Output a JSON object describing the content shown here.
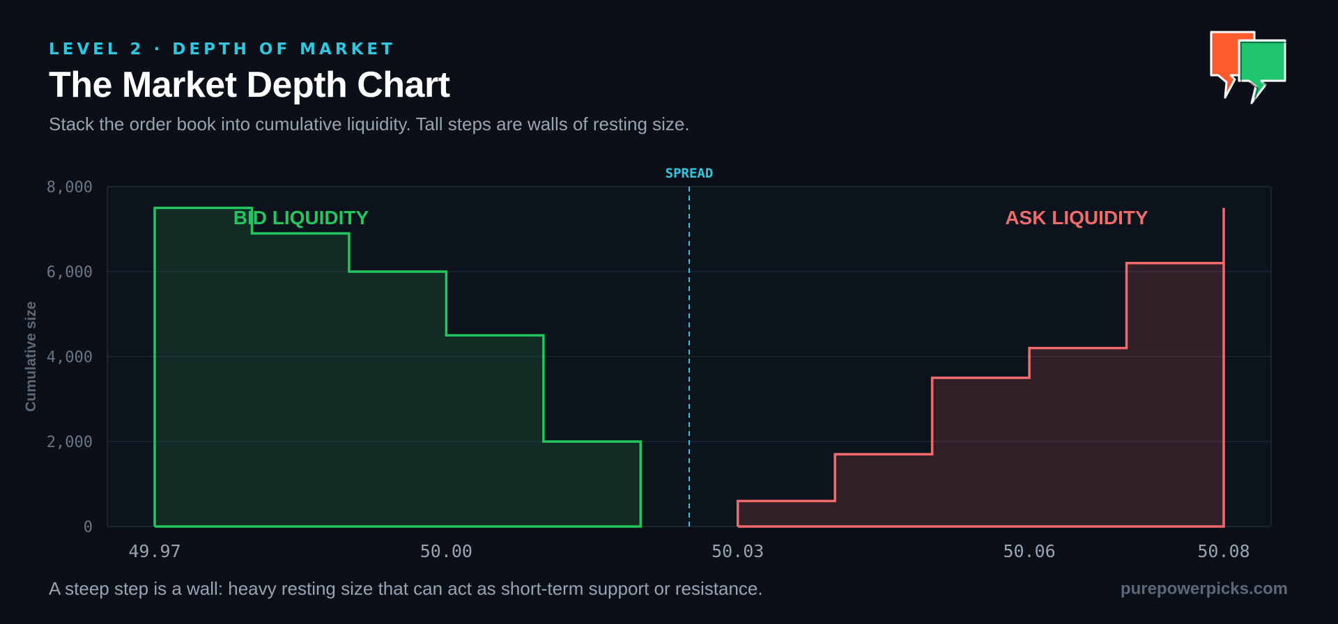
{
  "header": {
    "eyebrow": "LEVEL 2 · DEPTH OF MARKET",
    "title": "The Market Depth Chart",
    "subtitle": "Stack the order book into cumulative liquidity. Tall steps are walls of resting size."
  },
  "footer": {
    "note": "A steep step is a wall: heavy resting size that can act as short-term support or resistance.",
    "brand": "purepowerpicks.com"
  },
  "logo": {
    "icon": "speech-bubbles-lightning-icon",
    "colors": [
      "#ff5a2c",
      "#1fc46f"
    ]
  },
  "colors": {
    "bid": "#22c55e",
    "ask": "#f26b6b",
    "spread": "#2fc6df",
    "background": "#0b0f17"
  },
  "chart_data": {
    "type": "area",
    "subtype": "step",
    "ylabel": "Cumulative size",
    "xlabel": "",
    "xlim": [
      49.965,
      50.085
    ],
    "ylim": [
      0,
      8000
    ],
    "x_ticks": [
      {
        "value": 49.97,
        "label": "49.97"
      },
      {
        "value": 50.0,
        "label": "50.00"
      },
      {
        "value": 50.03,
        "label": "50.03"
      },
      {
        "value": 50.06,
        "label": "50.06"
      },
      {
        "value": 50.08,
        "label": "50.08"
      }
    ],
    "y_ticks": [
      {
        "value": 0,
        "label": "0"
      },
      {
        "value": 2000,
        "label": "2,000"
      },
      {
        "value": 4000,
        "label": "4,000"
      },
      {
        "value": 6000,
        "label": "6,000"
      },
      {
        "value": 8000,
        "label": "8,000"
      }
    ],
    "grid": true,
    "spread": {
      "label": "SPREAD",
      "x": 50.025
    },
    "series": [
      {
        "name": "BID LIQUIDITY",
        "side": "bid",
        "steps": [
          {
            "x0": 49.97,
            "x1": 49.98,
            "y": 7500
          },
          {
            "x0": 49.98,
            "x1": 49.99,
            "y": 6900
          },
          {
            "x0": 49.99,
            "x1": 50.0,
            "y": 6000
          },
          {
            "x0": 50.0,
            "x1": 50.01,
            "y": 4500
          },
          {
            "x0": 50.01,
            "x1": 50.02,
            "y": 2000
          }
        ]
      },
      {
        "name": "ASK LIQUIDITY",
        "side": "ask",
        "steps": [
          {
            "x0": 50.03,
            "x1": 50.04,
            "y": 600
          },
          {
            "x0": 50.04,
            "x1": 50.05,
            "y": 1700
          },
          {
            "x0": 50.05,
            "x1": 50.06,
            "y": 3500
          },
          {
            "x0": 50.06,
            "x1": 50.07,
            "y": 4200
          },
          {
            "x0": 50.07,
            "x1": 50.08,
            "y": 6200
          }
        ],
        "edge": {
          "x": 50.08,
          "y": 7500
        }
      }
    ]
  }
}
